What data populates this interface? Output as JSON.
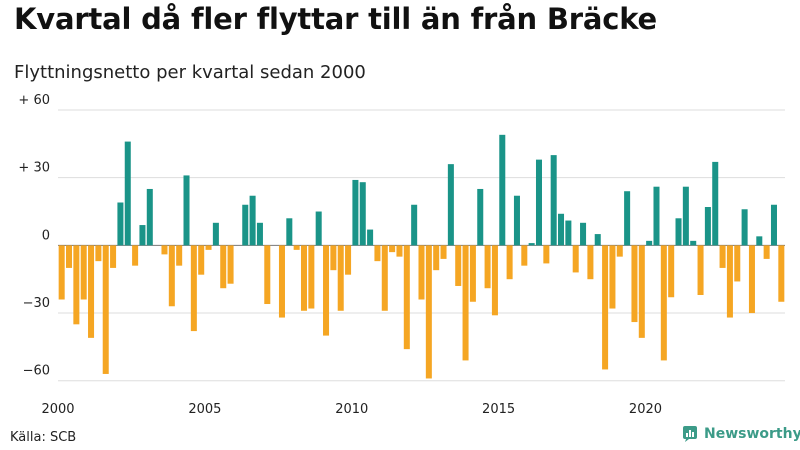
{
  "title": "Kvartal då fler flyttar till än från Bräcke",
  "subtitle": "Flyttningsnetto per kvartal sedan 2000",
  "source": "Källa: SCB",
  "brand": {
    "name": "Newsworthy",
    "icon": "newsworthy-logo-icon"
  },
  "colors": {
    "positive": "#1a9488",
    "negative": "#f5a623",
    "grid": "#dddddd",
    "zero": "#777777"
  },
  "chart_data": {
    "type": "bar",
    "title": "Kvartal då fler flyttar till än från Bräcke",
    "subtitle": "Flyttningsnetto per kvartal sedan 2000",
    "xlabel": "",
    "ylabel": "",
    "ylim": [
      -65,
      60
    ],
    "grid": true,
    "y_ticks": [
      {
        "value": 60,
        "label": "+ 60"
      },
      {
        "value": 30,
        "label": "+ 30"
      },
      {
        "value": 0,
        "label": "0"
      },
      {
        "value": -30,
        "label": "−30"
      },
      {
        "value": -60,
        "label": "−60"
      }
    ],
    "x_ticks": [
      "2000",
      "2005",
      "2010",
      "2015",
      "2020"
    ],
    "start_year": 2000,
    "values": [
      -24,
      -10,
      -35,
      -24,
      -41,
      -7,
      -57,
      -10,
      19,
      46,
      -9,
      9,
      25,
      0,
      -4,
      -27,
      -9,
      31,
      -38,
      -13,
      -2,
      10,
      -19,
      -17,
      0,
      18,
      22,
      10,
      -26,
      0,
      -32,
      12,
      -2,
      -29,
      -28,
      15,
      -40,
      -11,
      -29,
      -13,
      29,
      28,
      7,
      -7,
      -29,
      -3,
      -5,
      -46,
      18,
      -24,
      -59,
      -11,
      -6,
      36,
      -18,
      -51,
      -25,
      25,
      -19,
      -31,
      49,
      -15,
      22,
      -9,
      1,
      38,
      -8,
      40,
      14,
      11,
      -12,
      10,
      -15,
      5,
      -55,
      -28,
      -5,
      24,
      -34,
      -41,
      2,
      26,
      -51,
      -23,
      12,
      26,
      2,
      -22,
      17,
      37,
      -10,
      -32,
      -16,
      16,
      -30,
      4,
      -6,
      18,
      -25
    ]
  }
}
